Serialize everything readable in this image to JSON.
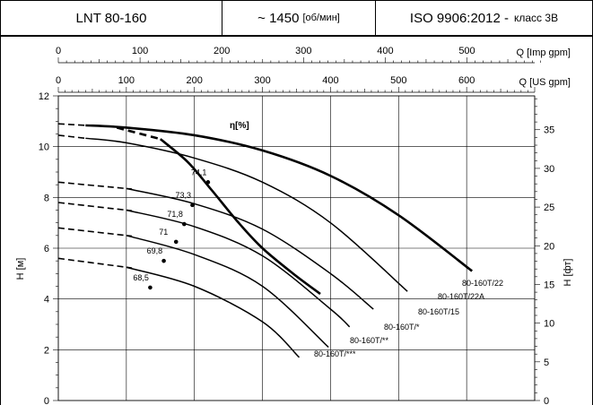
{
  "header": {
    "model": "LNT 80-160",
    "speed_value": "~ 1450",
    "speed_unit": "[об/мин]",
    "standard": "ISO 9906:2012 -",
    "class_label": "класс 3B"
  },
  "chart_data": {
    "type": "line",
    "title": "",
    "ylabel": "H [м]",
    "ylabel_right": "H [фт]",
    "xlabel_top1": "Q [Imp gpm]",
    "xlabel_top2": "Q [US gpm]",
    "x_unit": "US gpm",
    "xlim": [
      0,
      700
    ],
    "ylim": [
      0,
      12
    ],
    "y_ticks": [
      0,
      2,
      4,
      6,
      8,
      10,
      12
    ],
    "y_right_ticks": [
      0,
      5,
      10,
      15,
      20,
      25,
      30,
      35
    ],
    "x_ticks_us": [
      0,
      100,
      200,
      300,
      400,
      500,
      600
    ],
    "x_ticks_imp": [
      0,
      100,
      200,
      300,
      400,
      500
    ],
    "grid": true,
    "efficiency_label": "η[%]",
    "series": [
      {
        "name": "80-160T/22",
        "x": [
          0,
          100,
          200,
          300,
          400,
          500,
          608
        ],
        "y": [
          10.9,
          10.75,
          10.45,
          9.85,
          8.85,
          7.3,
          5.1
        ]
      },
      {
        "name": "80-160T/22A",
        "x": [
          0,
          100,
          200,
          300,
          400,
          513
        ],
        "y": [
          10.45,
          10.15,
          9.55,
          8.6,
          7.0,
          4.3
        ]
      },
      {
        "name": "80-160T/15",
        "x": [
          0,
          100,
          200,
          300,
          400,
          463
        ],
        "y": [
          8.6,
          8.35,
          7.75,
          6.75,
          5.0,
          3.6
        ]
      },
      {
        "name": "80-160T/*",
        "x": [
          0,
          100,
          200,
          300,
          400,
          428
        ],
        "y": [
          7.8,
          7.5,
          6.85,
          5.7,
          3.6,
          2.9
        ]
      },
      {
        "name": "80-160T/**",
        "x": [
          0,
          100,
          200,
          300,
          397
        ],
        "y": [
          6.8,
          6.5,
          5.75,
          4.5,
          2.1
        ]
      },
      {
        "name": "80-160T/***",
        "x": [
          0,
          100,
          200,
          300,
          354
        ],
        "y": [
          5.6,
          5.25,
          4.5,
          3.1,
          1.7
        ]
      }
    ],
    "efficiency_points": [
      {
        "label": "74,1",
        "x": 220,
        "y": 8.6
      },
      {
        "label": "73,3",
        "x": 197,
        "y": 7.7
      },
      {
        "label": "71,8",
        "x": 185,
        "y": 6.95
      },
      {
        "label": "71",
        "x": 173,
        "y": 6.25
      },
      {
        "label": "69,8",
        "x": 155,
        "y": 5.5
      },
      {
        "label": "68,5",
        "x": 135,
        "y": 4.45
      }
    ]
  }
}
